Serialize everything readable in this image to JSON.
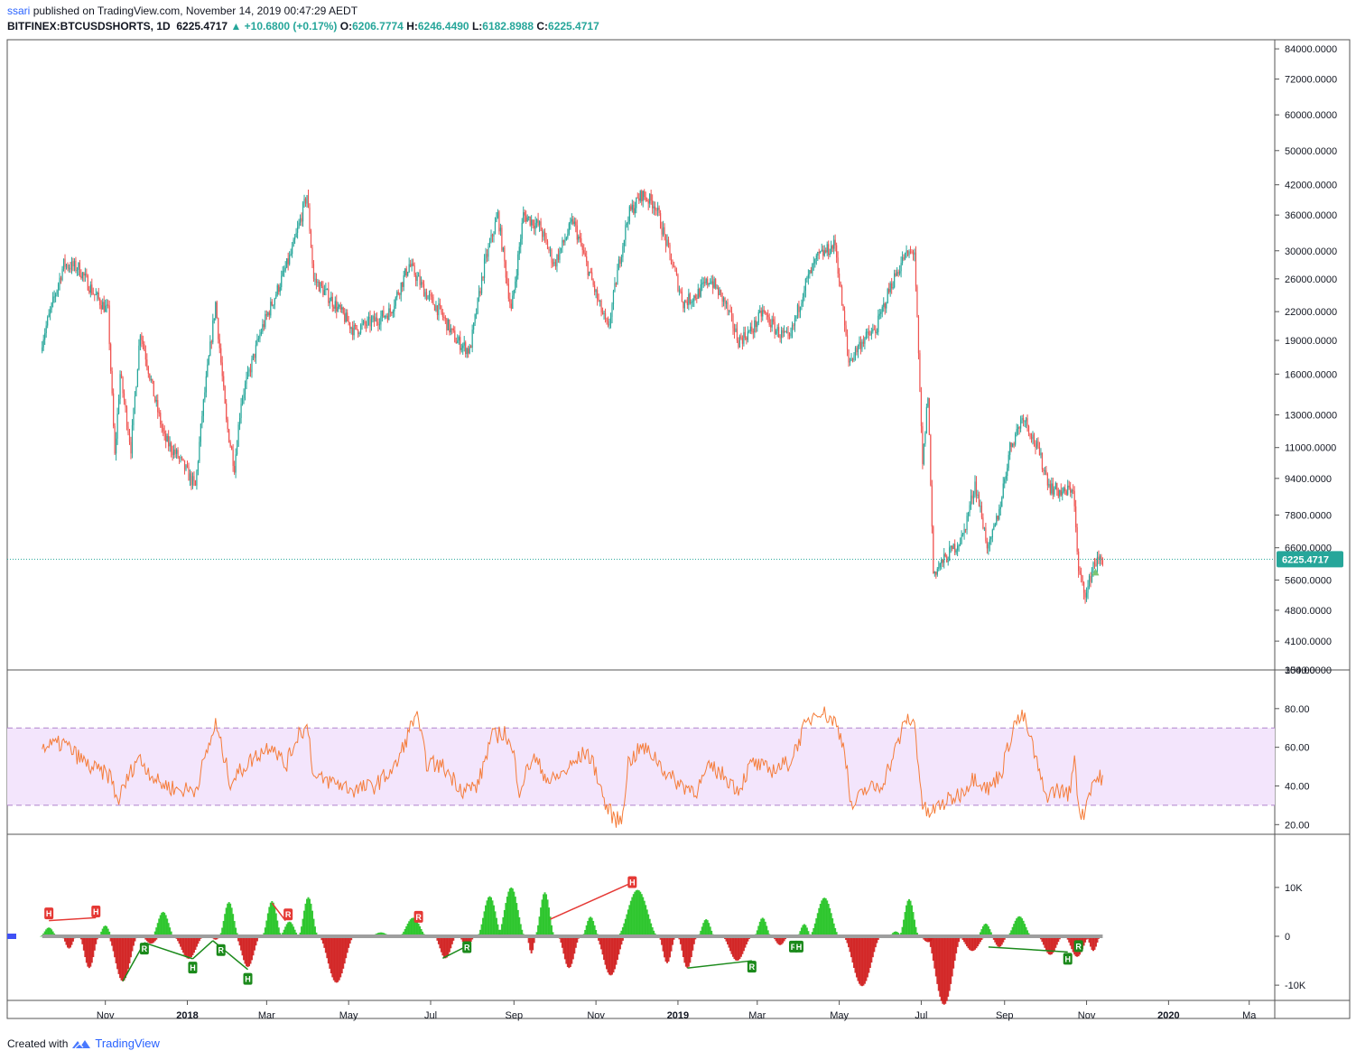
{
  "header": {
    "user": "ssari",
    "published_text": "published on TradingView.com, November 14, 2019 00:47:29 AEDT",
    "symbol": "BITFINEX:BTCUSDSHORTS, 1D",
    "last": "6225.4717",
    "change": "+10.6800 (+0.17%)",
    "o_label": "O:",
    "o": "6206.7774",
    "h_label": "H:",
    "h": "6246.4490",
    "l_label": "L:",
    "l": "6182.8988",
    "c_label": "C:",
    "c": "6225.4717"
  },
  "footer": {
    "created_with": "Created with",
    "brand": "TradingView"
  },
  "colors": {
    "up": "#26a69a",
    "down": "#ef5350",
    "rsi": "#f57c39",
    "band": "#f3e5fc",
    "hist_up": "#22c322",
    "hist_down": "#d01c1c",
    "price_tag": "#26a69a"
  },
  "chart_data": [
    {
      "type": "candlestick",
      "scale": "log",
      "ylim": [
        3540,
        88000
      ],
      "price_ticks": [
        "84000.0000",
        "72000.0000",
        "60000.0000",
        "50000.0000",
        "42000.0000",
        "36000.0000",
        "30000.0000",
        "26000.0000",
        "22000.0000",
        "19000.0000",
        "16000.0000",
        "13000.0000",
        "11000.0000",
        "9400.0000",
        "7800.0000",
        "6600.0000",
        "5600.0000",
        "4800.0000",
        "4100.0000",
        "3540.0000"
      ],
      "last_price_label": "6225.4717",
      "x_labels": [
        "Nov",
        "2018",
        "Mar",
        "May",
        "Jul",
        "Sep",
        "Nov",
        "2019",
        "Mar",
        "May",
        "Jul",
        "Sep",
        "Nov",
        "2020",
        "Ma"
      ],
      "close_anchors": [
        [
          "2017-09-15",
          19000
        ],
        [
          "2017-10-01",
          28000
        ],
        [
          "2017-10-12",
          27500
        ],
        [
          "2017-10-24",
          24000
        ],
        [
          "2017-11-03",
          22000
        ],
        [
          "2017-11-08",
          10500
        ],
        [
          "2017-11-12",
          16000
        ],
        [
          "2017-11-20",
          11000
        ],
        [
          "2017-11-27",
          20000
        ],
        [
          "2017-12-08",
          14000
        ],
        [
          "2017-12-15",
          11500
        ],
        [
          "2017-12-25",
          10500
        ],
        [
          "2018-01-07",
          9000
        ],
        [
          "2018-01-12",
          13000
        ],
        [
          "2018-01-22",
          23000
        ],
        [
          "2018-01-30",
          12500
        ],
        [
          "2018-02-05",
          10000
        ],
        [
          "2018-02-10",
          14000
        ],
        [
          "2018-02-25",
          20000
        ],
        [
          "2018-03-10",
          25000
        ],
        [
          "2018-03-20",
          30000
        ],
        [
          "2018-03-31",
          40000
        ],
        [
          "2018-04-05",
          26000
        ],
        [
          "2018-04-20",
          23000
        ],
        [
          "2018-05-05",
          20000
        ],
        [
          "2018-05-20",
          21000
        ],
        [
          "2018-06-01",
          22000
        ],
        [
          "2018-06-15",
          28000
        ],
        [
          "2018-06-28",
          24000
        ],
        [
          "2018-07-08",
          22000
        ],
        [
          "2018-07-20",
          19000
        ],
        [
          "2018-07-30",
          18000
        ],
        [
          "2018-08-10",
          28000
        ],
        [
          "2018-08-20",
          36000
        ],
        [
          "2018-08-30",
          22000
        ],
        [
          "2018-09-08",
          36000
        ],
        [
          "2018-09-20",
          34000
        ],
        [
          "2018-10-01",
          28000
        ],
        [
          "2018-10-15",
          35000
        ],
        [
          "2018-10-25",
          28000
        ],
        [
          "2018-11-03",
          23000
        ],
        [
          "2018-11-10",
          20000
        ],
        [
          "2018-11-18",
          28000
        ],
        [
          "2018-11-25",
          36000
        ],
        [
          "2018-12-05",
          40000
        ],
        [
          "2018-12-15",
          38000
        ],
        [
          "2018-12-25",
          30000
        ],
        [
          "2019-01-05",
          23000
        ],
        [
          "2019-01-15",
          24000
        ],
        [
          "2019-01-25",
          26000
        ],
        [
          "2019-02-05",
          23000
        ],
        [
          "2019-02-15",
          19000
        ],
        [
          "2019-02-25",
          20000
        ],
        [
          "2019-03-05",
          22000
        ],
        [
          "2019-03-15",
          20000
        ],
        [
          "2019-03-25",
          19000
        ],
        [
          "2019-04-05",
          25000
        ],
        [
          "2019-04-15",
          29000
        ],
        [
          "2019-04-28",
          31000
        ],
        [
          "2019-05-08",
          17000
        ],
        [
          "2019-05-18",
          19000
        ],
        [
          "2019-05-28",
          20000
        ],
        [
          "2019-06-08",
          25000
        ],
        [
          "2019-06-18",
          29000
        ],
        [
          "2019-06-26",
          30000
        ],
        [
          "2019-07-02",
          10000
        ],
        [
          "2019-07-06",
          14500
        ],
        [
          "2019-07-10",
          5800
        ],
        [
          "2019-07-20",
          6300
        ],
        [
          "2019-08-01",
          7000
        ],
        [
          "2019-08-10",
          9200
        ],
        [
          "2019-08-20",
          6500
        ],
        [
          "2019-08-28",
          8000
        ],
        [
          "2019-09-05",
          11000
        ],
        [
          "2019-09-15",
          13000
        ],
        [
          "2019-09-25",
          11000
        ],
        [
          "2019-10-05",
          9000
        ],
        [
          "2019-10-15",
          8700
        ],
        [
          "2019-10-22",
          9000
        ],
        [
          "2019-10-26",
          5800
        ],
        [
          "2019-11-01",
          5200
        ],
        [
          "2019-11-06",
          6100
        ],
        [
          "2019-11-13",
          6225
        ]
      ]
    },
    {
      "type": "line",
      "name": "RSI",
      "ylim": [
        15,
        100
      ],
      "ticks": [
        "100.00",
        "80.00",
        "60.00",
        "40.00",
        "20.00"
      ],
      "band": [
        30,
        70
      ],
      "anchors": [
        [
          "2017-09-15",
          60
        ],
        [
          "2017-10-01",
          62
        ],
        [
          "2017-10-20",
          50
        ],
        [
          "2017-11-05",
          45
        ],
        [
          "2017-11-10",
          32
        ],
        [
          "2017-11-25",
          55
        ],
        [
          "2017-12-10",
          42
        ],
        [
          "2017-12-25",
          38
        ],
        [
          "2018-01-07",
          38
        ],
        [
          "2018-01-22",
          72
        ],
        [
          "2018-02-02",
          42
        ],
        [
          "2018-02-15",
          52
        ],
        [
          "2018-03-05",
          62
        ],
        [
          "2018-03-15",
          50
        ],
        [
          "2018-03-25",
          68
        ],
        [
          "2018-04-01",
          70
        ],
        [
          "2018-04-05",
          44
        ],
        [
          "2018-04-20",
          42
        ],
        [
          "2018-05-05",
          38
        ],
        [
          "2018-05-20",
          40
        ],
        [
          "2018-06-05",
          50
        ],
        [
          "2018-06-15",
          68
        ],
        [
          "2018-06-20",
          78
        ],
        [
          "2018-06-28",
          52
        ],
        [
          "2018-07-10",
          50
        ],
        [
          "2018-07-25",
          38
        ],
        [
          "2018-08-05",
          40
        ],
        [
          "2018-08-15",
          65
        ],
        [
          "2018-08-25",
          68
        ],
        [
          "2018-09-01",
          55
        ],
        [
          "2018-09-05",
          38
        ],
        [
          "2018-09-15",
          55
        ],
        [
          "2018-09-28",
          42
        ],
        [
          "2018-10-10",
          48
        ],
        [
          "2018-10-25",
          58
        ],
        [
          "2018-11-01",
          48
        ],
        [
          "2018-11-08",
          30
        ],
        [
          "2018-11-15",
          23
        ],
        [
          "2018-11-20",
          22
        ],
        [
          "2018-11-25",
          52
        ],
        [
          "2018-12-05",
          60
        ],
        [
          "2018-12-15",
          55
        ],
        [
          "2018-12-25",
          45
        ],
        [
          "2019-01-05",
          40
        ],
        [
          "2019-01-15",
          38
        ],
        [
          "2019-01-25",
          50
        ],
        [
          "2019-02-05",
          45
        ],
        [
          "2019-02-15",
          38
        ],
        [
          "2019-02-25",
          52
        ],
        [
          "2019-03-10",
          48
        ],
        [
          "2019-03-25",
          52
        ],
        [
          "2019-04-05",
          70
        ],
        [
          "2019-04-15",
          80
        ],
        [
          "2019-04-28",
          73
        ],
        [
          "2019-05-05",
          60
        ],
        [
          "2019-05-10",
          28
        ],
        [
          "2019-05-20",
          38
        ],
        [
          "2019-06-01",
          40
        ],
        [
          "2019-06-10",
          55
        ],
        [
          "2019-06-20",
          75
        ],
        [
          "2019-06-26",
          72
        ],
        [
          "2019-07-02",
          30
        ],
        [
          "2019-07-06",
          25
        ],
        [
          "2019-07-15",
          30
        ],
        [
          "2019-07-30",
          36
        ],
        [
          "2019-08-10",
          45
        ],
        [
          "2019-08-20",
          38
        ],
        [
          "2019-08-30",
          48
        ],
        [
          "2019-09-08",
          72
        ],
        [
          "2019-09-15",
          76
        ],
        [
          "2019-09-22",
          60
        ],
        [
          "2019-10-01",
          35
        ],
        [
          "2019-10-10",
          38
        ],
        [
          "2019-10-20",
          36
        ],
        [
          "2019-10-23",
          58
        ],
        [
          "2019-10-26",
          30
        ],
        [
          "2019-10-29",
          24
        ],
        [
          "2019-11-05",
          42
        ],
        [
          "2019-11-13",
          45
        ]
      ]
    },
    {
      "type": "histogram",
      "name": "Oscillator",
      "ylim": [
        -17000,
        17000
      ],
      "ticks": [
        "10K",
        "0",
        "-10K"
      ],
      "lobes": [
        [
          "2017-09-20",
          12,
          1800
        ],
        [
          "2017-10-05",
          10,
          -2500
        ],
        [
          "2017-10-20",
          14,
          -6500
        ],
        [
          "2017-11-01",
          10,
          2200
        ],
        [
          "2017-11-14",
          22,
          -9200
        ],
        [
          "2017-12-05",
          14,
          -1500
        ],
        [
          "2017-12-14",
          16,
          5000
        ],
        [
          "2018-01-02",
          22,
          -4600
        ],
        [
          "2018-01-22",
          8,
          -700
        ],
        [
          "2018-02-01",
          14,
          7000
        ],
        [
          "2018-02-15",
          18,
          -6300
        ],
        [
          "2018-03-05",
          14,
          7200
        ],
        [
          "2018-03-18",
          14,
          3000
        ],
        [
          "2018-04-01",
          14,
          8000
        ],
        [
          "2018-04-22",
          26,
          -9500
        ],
        [
          "2018-05-25",
          16,
          800
        ],
        [
          "2018-06-18",
          20,
          3800
        ],
        [
          "2018-07-12",
          16,
          -4500
        ],
        [
          "2018-07-28",
          12,
          -2000
        ],
        [
          "2018-08-14",
          18,
          8200
        ],
        [
          "2018-08-30",
          20,
          10000
        ],
        [
          "2018-09-14",
          6,
          -3500
        ],
        [
          "2018-09-24",
          14,
          9000
        ],
        [
          "2018-10-12",
          16,
          -6500
        ],
        [
          "2018-10-28",
          12,
          4000
        ],
        [
          "2018-11-12",
          22,
          -8000
        ],
        [
          "2018-12-02",
          30,
          9500
        ],
        [
          "2018-12-24",
          12,
          -5500
        ],
        [
          "2019-01-08",
          14,
          -6500
        ],
        [
          "2019-01-22",
          12,
          3500
        ],
        [
          "2019-02-14",
          22,
          -5000
        ],
        [
          "2019-03-05",
          12,
          3800
        ],
        [
          "2019-03-18",
          12,
          -1800
        ],
        [
          "2019-04-05",
          10,
          2500
        ],
        [
          "2019-04-20",
          22,
          7900
        ],
        [
          "2019-05-18",
          28,
          -10200
        ],
        [
          "2019-06-12",
          10,
          1000
        ],
        [
          "2019-06-22",
          14,
          7600
        ],
        [
          "2019-07-06",
          12,
          -1200
        ],
        [
          "2019-07-18",
          26,
          -14000
        ],
        [
          "2019-08-08",
          20,
          -3000
        ],
        [
          "2019-08-18",
          12,
          2600
        ],
        [
          "2019-08-28",
          12,
          -2200
        ],
        [
          "2019-09-12",
          18,
          4100
        ],
        [
          "2019-10-05",
          18,
          -3800
        ],
        [
          "2019-10-25",
          18,
          -4200
        ],
        [
          "2019-11-06",
          10,
          -3000
        ]
      ],
      "trend_lines": [
        {
          "color": "red",
          "points": [
            [
              "2017-09-20",
              3200
            ],
            [
              "2017-10-25",
              3800
            ]
          ]
        },
        {
          "color": "red",
          "points": [
            [
              "2018-03-05",
              6800
            ],
            [
              "2018-03-15",
              3200
            ]
          ]
        },
        {
          "color": "red",
          "points": [
            [
              "2018-09-28",
              3500
            ],
            [
              "2018-11-28",
              11000
            ]
          ]
        },
        {
          "color": "green",
          "points": [
            [
              "2017-11-14",
              -9200
            ],
            [
              "2017-11-30",
              -1300
            ]
          ]
        },
        {
          "color": "green",
          "points": [
            [
              "2017-11-30",
              -1300
            ],
            [
              "2018-01-05",
              -4600
            ]
          ]
        },
        {
          "color": "green",
          "points": [
            [
              "2018-01-05",
              -4600
            ],
            [
              "2018-01-20",
              -900
            ]
          ]
        },
        {
          "color": "green",
          "points": [
            [
              "2018-01-20",
              -900
            ],
            [
              "2018-02-15",
              -6800
            ]
          ]
        },
        {
          "color": "green",
          "points": [
            [
              "2018-07-10",
              -4500
            ],
            [
              "2018-07-28",
              -2000
            ]
          ]
        },
        {
          "color": "green",
          "points": [
            [
              "2019-01-08",
              -6500
            ],
            [
              "2019-02-25",
              -5000
            ]
          ]
        },
        {
          "color": "green",
          "points": [
            [
              "2019-03-25",
              -1800
            ],
            [
              "2019-04-01",
              -1500
            ]
          ]
        },
        {
          "color": "green",
          "points": [
            [
              "2019-08-20",
              -2200
            ],
            [
              "2019-10-18",
              -3200
            ]
          ]
        }
      ],
      "markers": [
        {
          "date": "2017-09-20",
          "value": 4600,
          "label": "H",
          "color": "red"
        },
        {
          "date": "2017-10-25",
          "value": 5000,
          "label": "H",
          "color": "red"
        },
        {
          "date": "2018-03-17",
          "value": 4400,
          "label": "R",
          "color": "red"
        },
        {
          "date": "2018-06-22",
          "value": 3900,
          "label": "R",
          "color": "red"
        },
        {
          "date": "2018-11-28",
          "value": 11000,
          "label": "H",
          "color": "red"
        },
        {
          "date": "2017-11-30",
          "value": -2600,
          "label": "R",
          "color": "green"
        },
        {
          "date": "2018-01-05",
          "value": -6500,
          "label": "H",
          "color": "green"
        },
        {
          "date": "2018-01-26",
          "value": -2900,
          "label": "R",
          "color": "green"
        },
        {
          "date": "2018-02-15",
          "value": -8800,
          "label": "H",
          "color": "green"
        },
        {
          "date": "2018-07-28",
          "value": -2300,
          "label": "R",
          "color": "green"
        },
        {
          "date": "2019-02-25",
          "value": -6300,
          "label": "R",
          "color": "green"
        },
        {
          "date": "2019-03-28",
          "value": -2200,
          "label": "R",
          "color": "green"
        },
        {
          "date": "2019-04-01",
          "value": -2200,
          "label": "H",
          "color": "green"
        },
        {
          "date": "2019-10-18",
          "value": -4700,
          "label": "H",
          "color": "green"
        },
        {
          "date": "2019-10-26",
          "value": -2100,
          "label": "R",
          "color": "green"
        }
      ]
    }
  ]
}
